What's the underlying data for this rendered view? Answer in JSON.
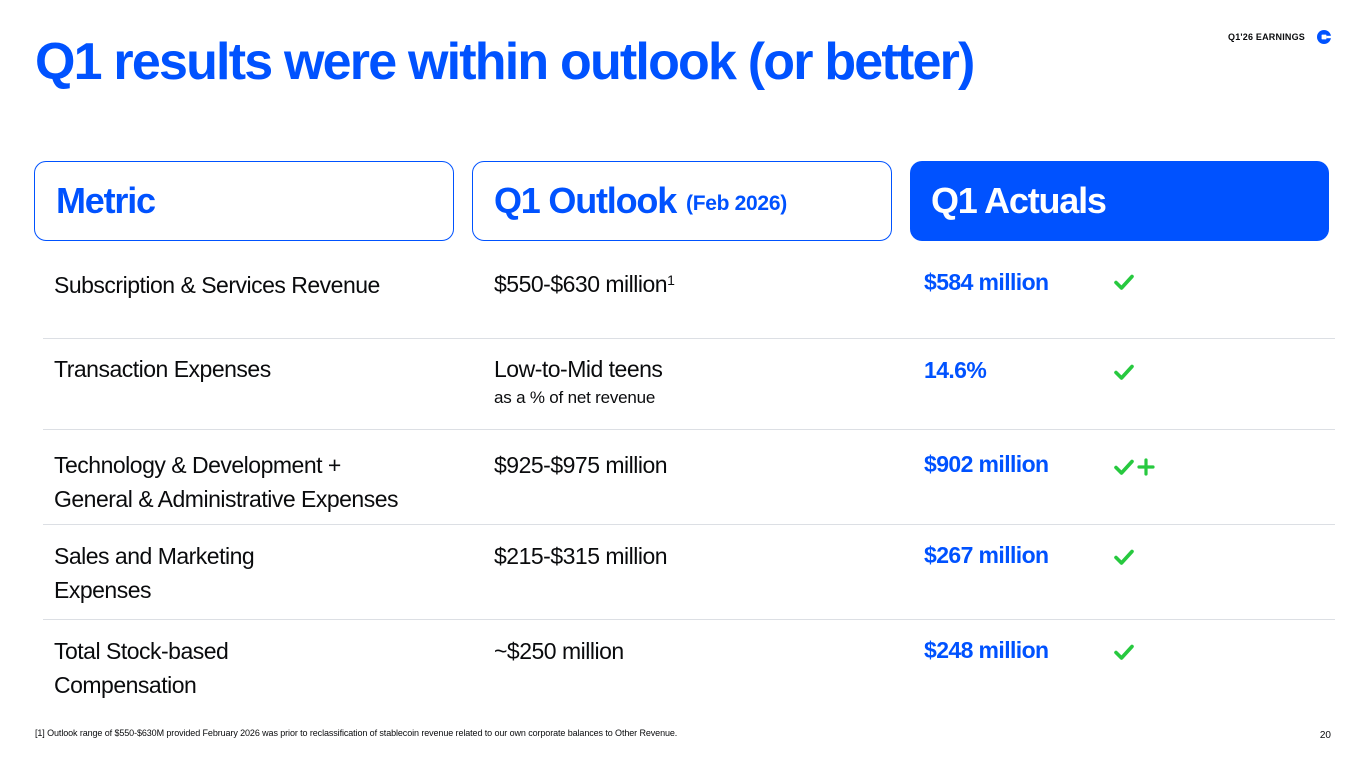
{
  "title": "Q1 results were within outlook (or better)",
  "header": {
    "earnings_label": "Q1'26 EARNINGS",
    "logo_icon": "coinbase-logo-icon"
  },
  "columns": {
    "metric": "Metric",
    "outlook": "Q1 Outlook",
    "outlook_sub": "(Feb 2026)",
    "actuals": "Q1 Actuals"
  },
  "rows": [
    {
      "metric_line1": "Subscription & Services Revenue",
      "metric_line2": "",
      "outlook": "$550-$630 million",
      "outlook_sup": "1",
      "outlook_note": "",
      "actual": "$584 million",
      "status_icon": "check-icon",
      "plus": false
    },
    {
      "metric_line1": "Transaction Expenses",
      "metric_line2": "",
      "outlook": "Low-to-Mid teens",
      "outlook_sup": "",
      "outlook_note": "as a % of net revenue",
      "actual": "14.6%",
      "status_icon": "check-icon",
      "plus": false
    },
    {
      "metric_line1": "Technology & Development +",
      "metric_line2": "General & Administrative Expenses",
      "outlook": "$925-$975 million",
      "outlook_sup": "",
      "outlook_note": "",
      "actual": "$902 million",
      "status_icon": "check-icon",
      "plus": true
    },
    {
      "metric_line1": "Sales and Marketing",
      "metric_line2": "Expenses",
      "outlook": "$215-$315 million",
      "outlook_sup": "",
      "outlook_note": "",
      "actual": "$267 million",
      "status_icon": "check-icon",
      "plus": false
    },
    {
      "metric_line1": "Total Stock-based",
      "metric_line2": "Compensation",
      "outlook": "~$250 million",
      "outlook_sup": "",
      "outlook_note": "",
      "actual": "$248 million",
      "status_icon": "check-icon",
      "plus": false
    }
  ],
  "footnote": "[1] Outlook range of $550-$630M provided February 2026 was prior to reclassification of stablecoin revenue related to our own corporate balances to Other Revenue.",
  "page_number": "20",
  "colors": {
    "brand_blue": "#0052ff",
    "check_green": "#27c93f",
    "divider": "#dcdfe4"
  }
}
